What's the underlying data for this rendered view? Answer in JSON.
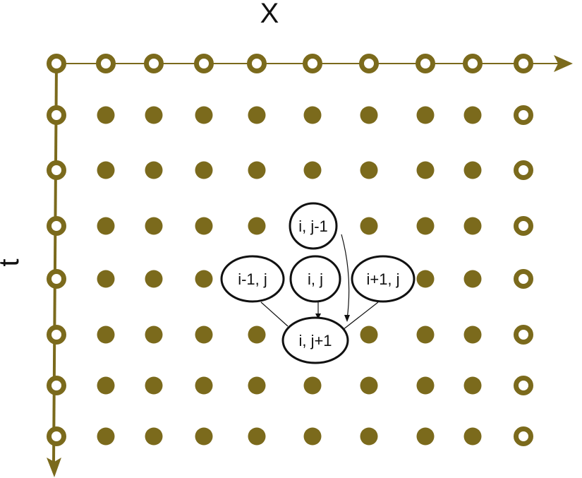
{
  "axes": {
    "x_label": "X",
    "t_label": "t"
  },
  "grid": {
    "columns": 10,
    "rows": 8,
    "boundary_style": "ring",
    "interior_style": "filled"
  },
  "stencil": {
    "nodes": [
      {
        "id": "i-jm1",
        "label": "i, j-1"
      },
      {
        "id": "im1-j",
        "label": "i-1, j"
      },
      {
        "id": "i-j",
        "label": "i, j"
      },
      {
        "id": "ip1-j",
        "label": "i+1, j"
      },
      {
        "id": "i-jp1",
        "label": "i, j+1"
      }
    ]
  },
  "colors": {
    "grid_point": "#7b6a1c",
    "axis": "#7b6a1c",
    "stencil_stroke": "#111111",
    "stencil_fill": "#ffffff",
    "background": "#ffffff"
  }
}
